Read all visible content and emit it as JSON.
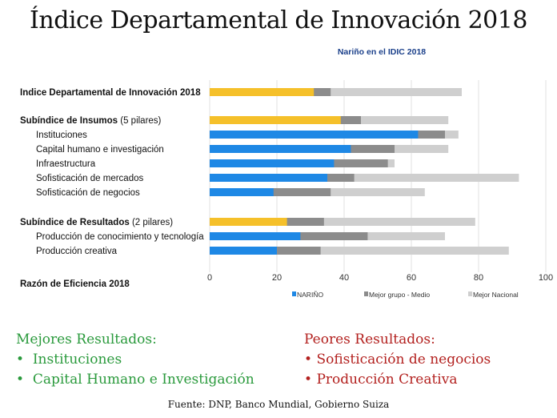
{
  "title": "Índice Departamental de Innovación 2018",
  "chart_data": {
    "type": "bar",
    "orientation": "horizontal",
    "stacked": true,
    "title": "Nariño en el IDIC 2018",
    "xlim": [
      0,
      100
    ],
    "xticks": [
      0,
      20,
      40,
      60,
      80,
      100
    ],
    "grid": true,
    "legend_position": "bottom",
    "rows": [
      {
        "label": "Indice Departamental de Innovación 2018",
        "suffix": "",
        "bold": true,
        "indent": false,
        "highlight": true,
        "values": [
          31,
          36,
          75
        ]
      },
      {
        "label": "Subíndice de Insumos",
        "suffix": " (5 pilares)",
        "bold": true,
        "indent": false,
        "highlight": true,
        "values": [
          39,
          45,
          71
        ]
      },
      {
        "label": "Instituciones",
        "suffix": "",
        "bold": false,
        "indent": true,
        "highlight": false,
        "values": [
          62,
          70,
          74
        ]
      },
      {
        "label": "Capital humano e investigación",
        "suffix": "",
        "bold": false,
        "indent": true,
        "highlight": false,
        "values": [
          42,
          55,
          71
        ]
      },
      {
        "label": "Infraestructura",
        "suffix": "",
        "bold": false,
        "indent": true,
        "highlight": false,
        "values": [
          37,
          53,
          55
        ]
      },
      {
        "label": "Sofisticación de mercados",
        "suffix": "",
        "bold": false,
        "indent": true,
        "highlight": false,
        "values": [
          35,
          43,
          92
        ]
      },
      {
        "label": "Sofisticación de negocios",
        "suffix": "",
        "bold": false,
        "indent": true,
        "highlight": false,
        "values": [
          19,
          36,
          64
        ]
      },
      {
        "label": "Subíndice de Resultados",
        "suffix": "  (2 pilares)",
        "bold": true,
        "indent": false,
        "highlight": true,
        "values": [
          23,
          34,
          79
        ]
      },
      {
        "label": "Producción de conocimiento y tecnología",
        "suffix": "",
        "bold": false,
        "indent": true,
        "highlight": false,
        "values": [
          27,
          47,
          70
        ]
      },
      {
        "label": "Producción creativa",
        "suffix": "",
        "bold": false,
        "indent": true,
        "highlight": false,
        "values": [
          20,
          33,
          89
        ]
      },
      {
        "label": "Razón de Eficiencia 2018",
        "suffix": "",
        "bold": true,
        "indent": false,
        "highlight": false,
        "values": null
      }
    ],
    "series": [
      {
        "name": "NARIÑO",
        "color": "#1e88e5"
      },
      {
        "name": "Mejor grupo - Medio",
        "color": "#8c8c8c"
      },
      {
        "name": "Mejor Nacional",
        "color": "#cfcfcf"
      }
    ],
    "highlight_color": "#f5c02a"
  },
  "summary": {
    "best_title": "Mejores Resultados:",
    "best_items": [
      "Instituciones",
      "Capital Humano e Investigación"
    ],
    "worst_title": "Peores Resultados:",
    "worst_items": [
      "Sofisticación de negocios",
      "Producción Creativa"
    ],
    "bullet": "•",
    "best_color": "#2a9a3c",
    "worst_color": "#b3211f"
  },
  "source": "Fuente: DNP, Banco Mundial, Gobierno Suiza"
}
